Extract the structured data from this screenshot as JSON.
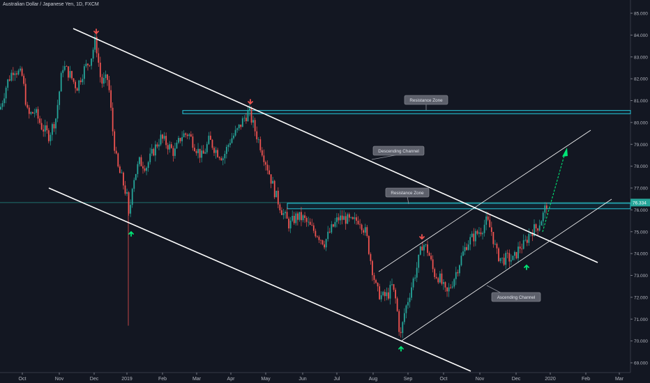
{
  "chart_data": {
    "type": "candlestick",
    "title": "Australian Dollar / Japanese Yen, 1D, FXCM",
    "y_ticks": [
      "85.000",
      "84.000",
      "83.000",
      "82.000",
      "81.000",
      "80.000",
      "79.000",
      "78.000",
      "77.000",
      "76.000",
      "75.000",
      "74.000",
      "73.000",
      "72.000",
      "71.000",
      "70.000",
      "69.000"
    ],
    "x_ticks": [
      "Oct",
      "Nov",
      "Dec",
      "2019",
      "Feb",
      "Mar",
      "Apr",
      "May",
      "Jun",
      "Jul",
      "Aug",
      "Sep",
      "Oct",
      "Nov",
      "Dec",
      "2020",
      "Feb",
      "Mar"
    ],
    "last_price": "76.334",
    "ylim": [
      68.5,
      85.3
    ],
    "annotations": {
      "resistance_zone_upper": "Resistance Zone",
      "resistance_zone_lower": "Resistance Zone",
      "descending_channel": "Descending Channel",
      "ascending_channel": "Ascending Channel"
    },
    "zones": [
      {
        "name": "resistance-zone-upper",
        "from": 80.4,
        "to": 80.55
      },
      {
        "name": "resistance-zone-lower",
        "from": 76.05,
        "to": 76.3
      }
    ],
    "price_path": [
      [
        0,
        80.6
      ],
      [
        10,
        81.8
      ],
      [
        20,
        82.5
      ],
      [
        32,
        82.1
      ],
      [
        40,
        80.3
      ],
      [
        50,
        80.5
      ],
      [
        60,
        79.8
      ],
      [
        70,
        79.4
      ],
      [
        80,
        80.2
      ],
      [
        90,
        82.6
      ],
      [
        100,
        82.2
      ],
      [
        110,
        81.6
      ],
      [
        120,
        82.4
      ],
      [
        130,
        82.9
      ],
      [
        137,
        83.8
      ],
      [
        145,
        81.8
      ],
      [
        155,
        82.0
      ],
      [
        162,
        79.5
      ],
      [
        168,
        78.0
      ],
      [
        175,
        77.4
      ],
      [
        182,
        76.6
      ],
      [
        185,
        75.5
      ],
      [
        190,
        77.3
      ],
      [
        200,
        78.2
      ],
      [
        210,
        78.0
      ],
      [
        220,
        78.7
      ],
      [
        230,
        79.3
      ],
      [
        240,
        79.0
      ],
      [
        250,
        78.6
      ],
      [
        260,
        79.4
      ],
      [
        270,
        79.5
      ],
      [
        280,
        78.9
      ],
      [
        290,
        78.4
      ],
      [
        300,
        79.2
      ],
      [
        310,
        78.7
      ],
      [
        320,
        78.4
      ],
      [
        330,
        79.2
      ],
      [
        340,
        79.6
      ],
      [
        350,
        80.2
      ],
      [
        357,
        80.5
      ],
      [
        365,
        79.7
      ],
      [
        375,
        78.8
      ],
      [
        385,
        77.8
      ],
      [
        395,
        76.7
      ],
      [
        405,
        75.9
      ],
      [
        415,
        75.3
      ],
      [
        425,
        75.7
      ],
      [
        435,
        75.6
      ],
      [
        445,
        75.2
      ],
      [
        455,
        74.9
      ],
      [
        465,
        74.5
      ],
      [
        475,
        75.1
      ],
      [
        485,
        75.6
      ],
      [
        495,
        75.6
      ],
      [
        505,
        75.4
      ],
      [
        515,
        75.6
      ],
      [
        525,
        74.9
      ],
      [
        532,
        73.6
      ],
      [
        540,
        72.3
      ],
      [
        548,
        72.0
      ],
      [
        556,
        72.1
      ],
      [
        562,
        72.5
      ],
      [
        568,
        71.8
      ],
      [
        574,
        70.1
      ],
      [
        580,
        71.3
      ],
      [
        590,
        72.5
      ],
      [
        598,
        73.4
      ],
      [
        606,
        74.5
      ],
      [
        614,
        74.1
      ],
      [
        622,
        73.1
      ],
      [
        630,
        72.9
      ],
      [
        640,
        72.1
      ],
      [
        650,
        72.8
      ],
      [
        660,
        73.7
      ],
      [
        670,
        74.5
      ],
      [
        680,
        74.8
      ],
      [
        690,
        75.1
      ],
      [
        698,
        75.5
      ],
      [
        705,
        75.0
      ],
      [
        712,
        74.0
      ],
      [
        720,
        73.7
      ],
      [
        728,
        73.8
      ],
      [
        736,
        73.7
      ],
      [
        745,
        74.3
      ],
      [
        752,
        74.4
      ],
      [
        760,
        75.0
      ],
      [
        770,
        75.2
      ],
      [
        778,
        75.7
      ],
      [
        784,
        76.3
      ]
    ],
    "up_color": "#26a69a",
    "down_color": "#ef5350",
    "grid": false
  }
}
